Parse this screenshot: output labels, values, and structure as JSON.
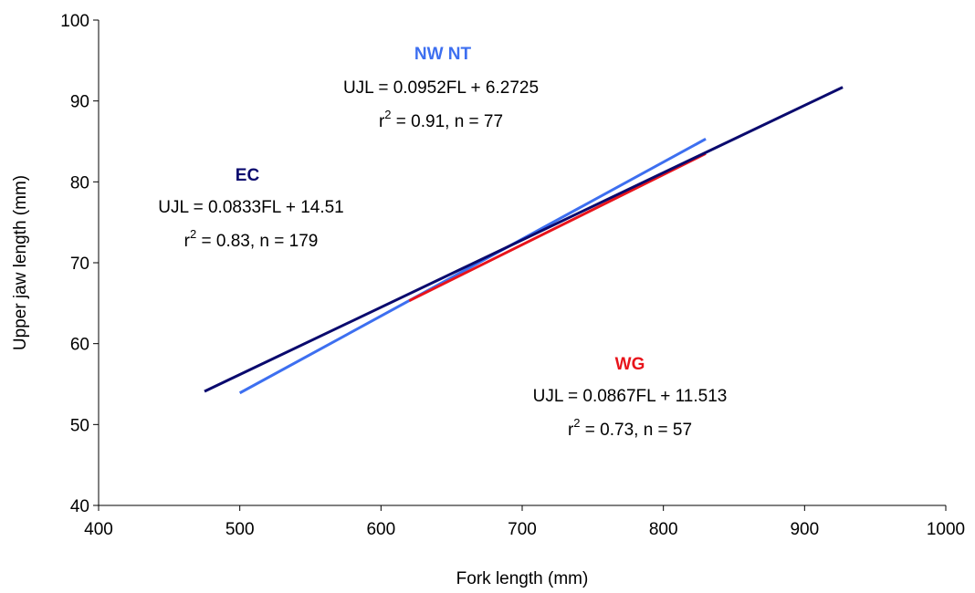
{
  "chart_data": {
    "type": "line",
    "title": "",
    "xlabel": "Fork length (mm)",
    "ylabel": "Upper jaw length (mm)",
    "xlim": [
      400,
      1000
    ],
    "ylim": [
      40,
      100
    ],
    "xticks": [
      400,
      500,
      600,
      700,
      800,
      900,
      1000
    ],
    "yticks": [
      40,
      50,
      60,
      70,
      80,
      90,
      100
    ],
    "grid": false,
    "legend": "none",
    "series": [
      {
        "name": "NW NT",
        "color": "#3d6ff0",
        "x": [
          500,
          830
        ],
        "y": [
          53.9,
          85.3
        ],
        "equation": "UJL = 0.0952FL + 6.2725",
        "r2_prefix": "r",
        "r2_sup": "2",
        "r2_suffix": " = 0.91, n = 77"
      },
      {
        "name": "WG",
        "color": "#e8141b",
        "x": [
          620,
          830
        ],
        "y": [
          65.3,
          83.5
        ],
        "equation": "UJL = 0.0867FL + 11.513",
        "r2_prefix": "r",
        "r2_sup": "2",
        "r2_suffix": " = 0.73, n = 57"
      },
      {
        "name": "EC",
        "color": "#0a0a6e",
        "x": [
          475,
          927
        ],
        "y": [
          54.1,
          91.7
        ],
        "equation": "UJL = 0.0833FL + 14.51",
        "r2_prefix": "r",
        "r2_sup": "2",
        "r2_suffix": " = 0.83, n = 179"
      }
    ]
  }
}
